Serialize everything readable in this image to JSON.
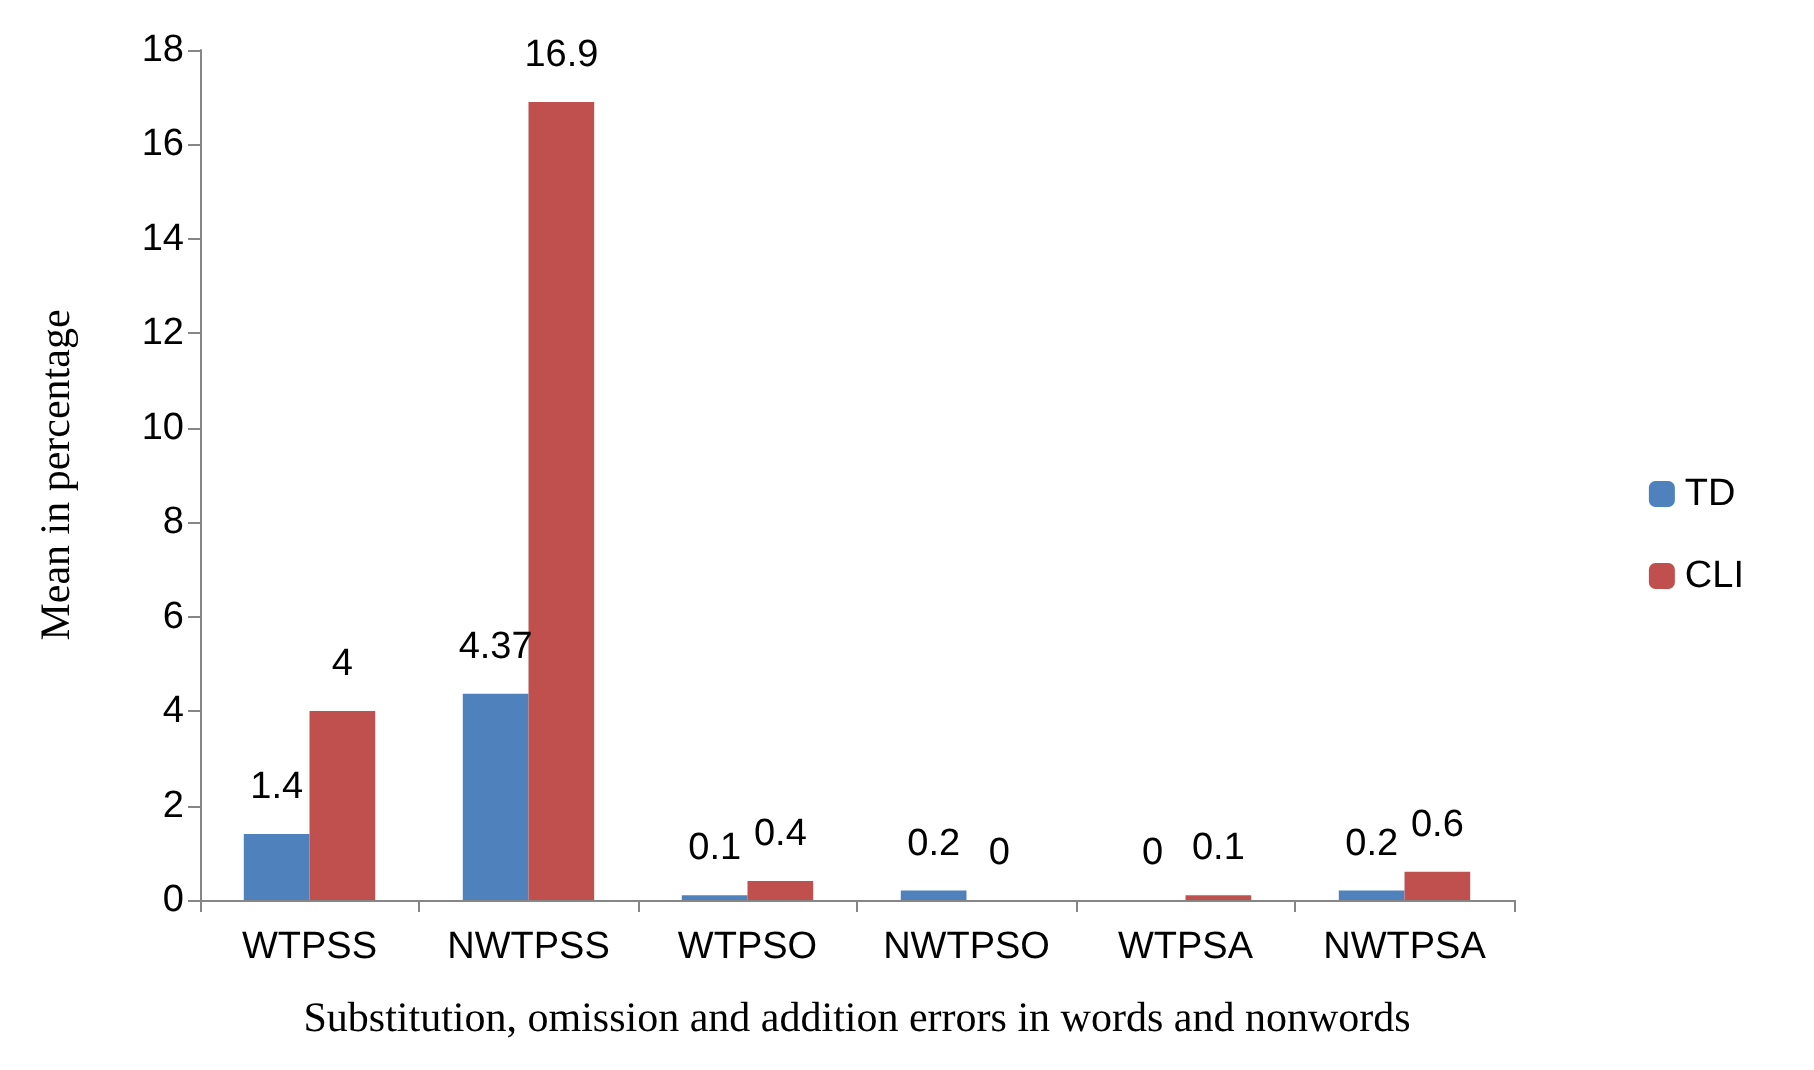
{
  "chart_data": {
    "type": "bar",
    "xlabel": "Substitution, omission and addition errors in words and nonwords",
    "ylabel": "Mean in percentage",
    "categories": [
      "WTPSS",
      "NWTPSS",
      "WTPSO",
      "NWTPSO",
      "WTPSA",
      "NWTPSA"
    ],
    "series": [
      {
        "name": "TD",
        "color": "#4f81bd",
        "values": [
          1.4,
          4.37,
          0.1,
          0.2,
          0,
          0.2
        ]
      },
      {
        "name": "CLI",
        "color": "#c0504d",
        "values": [
          4,
          16.9,
          0.4,
          0,
          0.1,
          0.6
        ]
      }
    ],
    "ylim": [
      0,
      18
    ],
    "yticks": [
      0,
      2,
      4,
      6,
      8,
      10,
      12,
      14,
      16,
      18
    ],
    "grid": false,
    "legend": "right",
    "data_labels": true
  }
}
